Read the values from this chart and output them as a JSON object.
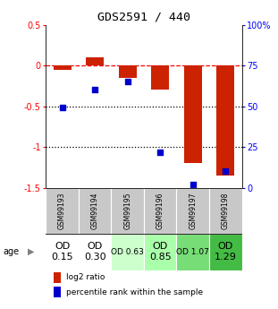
{
  "title": "GDS2591 / 440",
  "samples": [
    "GSM99193",
    "GSM99194",
    "GSM99195",
    "GSM99196",
    "GSM99197",
    "GSM99198"
  ],
  "log2_ratio": [
    -0.05,
    0.1,
    -0.15,
    -0.3,
    -1.2,
    -1.35
  ],
  "percentile_rank": [
    49,
    60,
    65,
    22,
    2,
    10
  ],
  "age_labels": [
    "OD\n0.15",
    "OD\n0.30",
    "OD 0.63",
    "OD\n0.85",
    "OD 1.07",
    "OD\n1.29"
  ],
  "age_bg_colors": [
    "#ffffff",
    "#ffffff",
    "#ccffcc",
    "#aaffaa",
    "#77dd77",
    "#44bb44"
  ],
  "age_font_sizes": [
    8,
    8,
    6.5,
    8,
    6.5,
    8
  ],
  "bar_color": "#cc2200",
  "dot_color": "#0000cc",
  "ylim_left": [
    -1.5,
    0.5
  ],
  "ylim_right": [
    0,
    100
  ],
  "yticks_left": [
    0.5,
    0,
    -0.5,
    -1.0,
    -1.5
  ],
  "yticks_right": [
    100,
    75,
    50,
    25,
    0
  ],
  "hline_y": [
    0,
    -0.5,
    -1.0
  ],
  "hline_styles": [
    "dashed",
    "dotted",
    "dotted"
  ],
  "hline_colors": [
    "red",
    "black",
    "black"
  ],
  "sample_bg_color": "#c8c8c8",
  "legend_items": [
    "log2 ratio",
    "percentile rank within the sample"
  ]
}
